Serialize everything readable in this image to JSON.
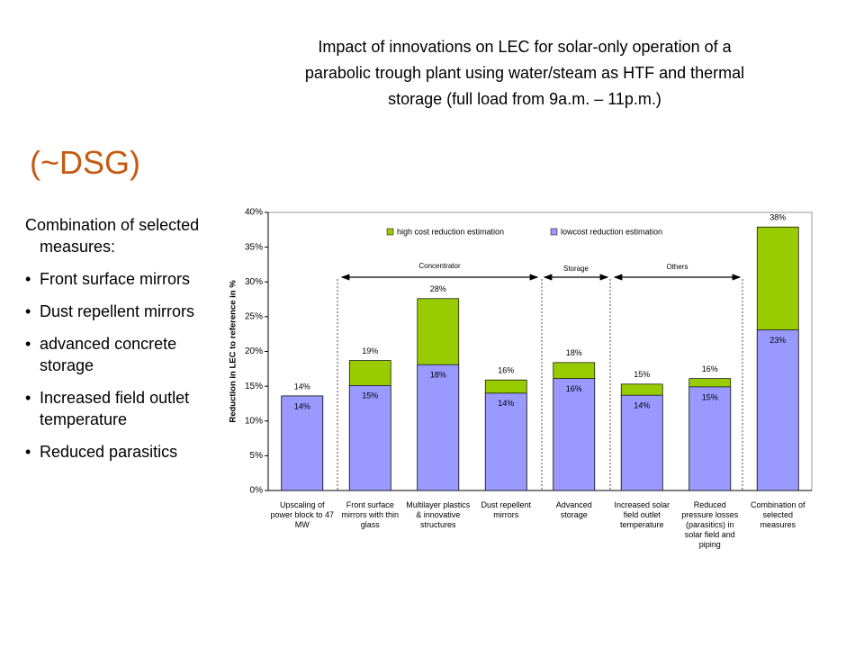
{
  "slide": {
    "title_lines": [
      "Impact of innovations on LEC for solar-only operation of a",
      "parabolic trough plant using water/steam as HTF and thermal",
      "storage (full load from 9a.m. – 11p.m.)"
    ],
    "heading": "(~DSG)",
    "intro": "Combination of selected measures:",
    "bullets": [
      "Front surface mirrors",
      "Dust repellent mirrors",
      "advanced concrete storage",
      "Increased field outlet temperature",
      "Reduced parasitics"
    ]
  },
  "chart_data": {
    "type": "bar",
    "ylabel": "Reduction in LEC to reference in %",
    "categories": [
      "Upscaling of power block to 47 MW",
      "Front surface mirrors with thin glass",
      "Multilayer plastics & innovative structures",
      "Dust repellent mirrors",
      "Advanced storage",
      "Increased solar field outlet temperature",
      "Reduced pressure losses (parasitics) in solar field and piping",
      "Combination of selected measures"
    ],
    "series": [
      {
        "name": "high cost reduction estimation",
        "color": "#99cc00",
        "values": [
          13.6,
          18.7,
          27.6,
          15.9,
          18.4,
          15.3,
          16.1,
          37.9
        ],
        "value_labels": [
          "14%",
          "19%",
          "28%",
          "16%",
          "18%",
          "15%",
          "16%",
          "38%"
        ]
      },
      {
        "name": "lowcost reduction estimation",
        "color": "#9999ff",
        "values": [
          13.6,
          15.1,
          18.1,
          14.0,
          16.1,
          13.7,
          14.9,
          23.1
        ],
        "value_labels": [
          "14%",
          "15%",
          "18%",
          "14%",
          "16%",
          "14%",
          "15%",
          "23%"
        ]
      }
    ],
    "annotations": [
      "Concentrator",
      "Storage",
      "Others"
    ],
    "ylim": [
      0,
      40
    ],
    "yticks": [
      {
        "value": 0,
        "label": "0%"
      },
      {
        "value": 5,
        "label": "5%"
      },
      {
        "value": 10,
        "label": "10%"
      },
      {
        "value": 15,
        "label": "15%"
      },
      {
        "value": 20,
        "label": "20%"
      },
      {
        "value": 25,
        "label": "25%"
      },
      {
        "value": 30,
        "label": "30%"
      },
      {
        "value": 35,
        "label": "35%"
      },
      {
        "value": 40,
        "label": "40%"
      }
    ],
    "grid": false
  }
}
